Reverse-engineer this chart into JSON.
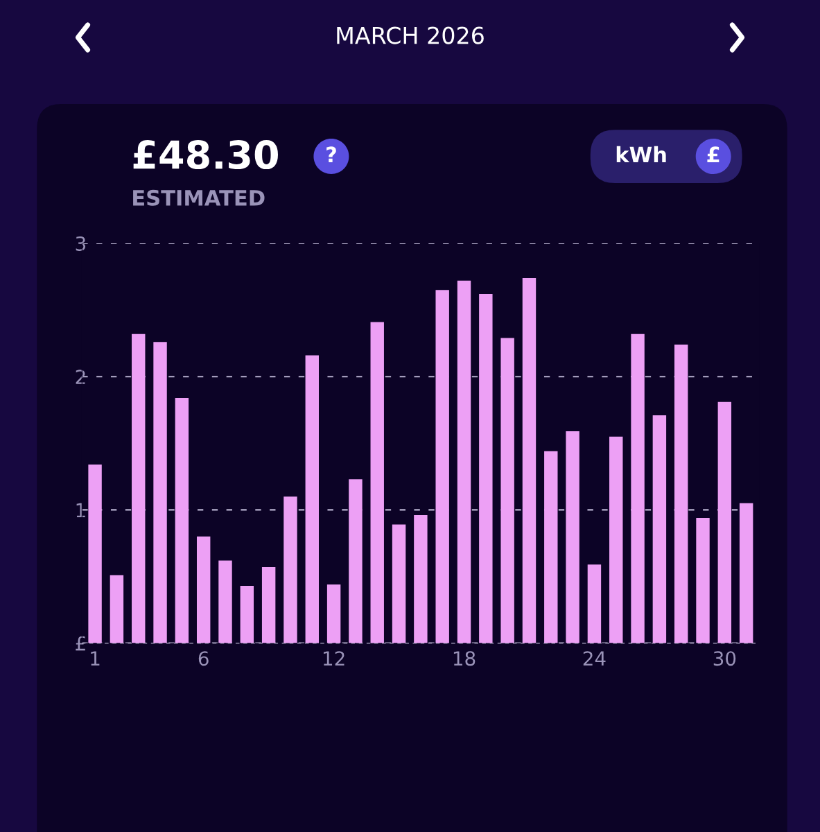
{
  "chart_data": {
    "type": "bar",
    "title": "MARCH 2026",
    "subtitle": "£48.30",
    "annotations": [
      "ESTIMATED",
      "kWh",
      "£",
      "?"
    ],
    "categories": [
      "1",
      null,
      null,
      null,
      null,
      "6",
      null,
      null,
      null,
      null,
      null,
      "12",
      null,
      null,
      null,
      null,
      null,
      "18",
      null,
      null,
      null,
      null,
      null,
      "24",
      null,
      null,
      null,
      null,
      null,
      "30",
      null
    ],
    "values": [
      1.34,
      0.51,
      2.32,
      2.26,
      1.84,
      0.8,
      0.62,
      0.43,
      0.57,
      1.1,
      2.16,
      0.44,
      1.23,
      2.41,
      0.89,
      0.96,
      2.65,
      2.72,
      2.62,
      2.29,
      2.74,
      1.44,
      1.59,
      0.59,
      1.55,
      2.32,
      1.71,
      2.24,
      0.94,
      1.81,
      1.05
    ],
    "color": "#eda0f5",
    "ylim": [
      0,
      3
    ],
    "yticks": [
      {
        "value": 0,
        "label": "£"
      },
      1,
      2,
      3
    ],
    "grid": "y",
    "legend": false
  }
}
